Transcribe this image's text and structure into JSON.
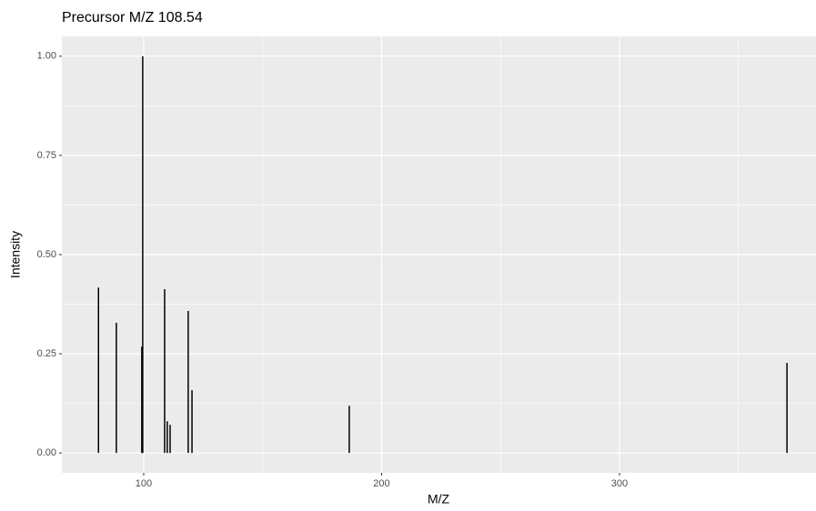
{
  "chart_data": {
    "type": "spectrum",
    "title": "Precursor M/Z 108.54",
    "x_label": "M/Z",
    "y_label": "Intensity",
    "x": [
      81.0,
      88.5,
      99.2,
      99.6,
      108.8,
      109.9,
      111.1,
      118.7,
      120.3,
      186.4,
      370.4
    ],
    "values": [
      0.417,
      0.328,
      0.268,
      1.0,
      0.413,
      0.08,
      0.071,
      0.358,
      0.158,
      0.119,
      0.227
    ],
    "color": "#000000",
    "xlim": [
      65.6,
      382.6
    ],
    "ylim": [
      -0.05,
      1.05
    ],
    "xticks": [
      100,
      200,
      300
    ],
    "yticks": [
      {
        "value": 0,
        "label": "0.00"
      },
      {
        "value": 0.25,
        "label": "0.25"
      },
      {
        "value": 0.5,
        "label": "0.50"
      },
      {
        "value": 0.75,
        "label": "0.75"
      },
      {
        "value": 1,
        "label": "1.00"
      }
    ],
    "x_minor_ticks": [
      150,
      250,
      350
    ],
    "y_minor_ticks": [
      0.125,
      0.375,
      0.625,
      0.875
    ],
    "grid": true
  }
}
